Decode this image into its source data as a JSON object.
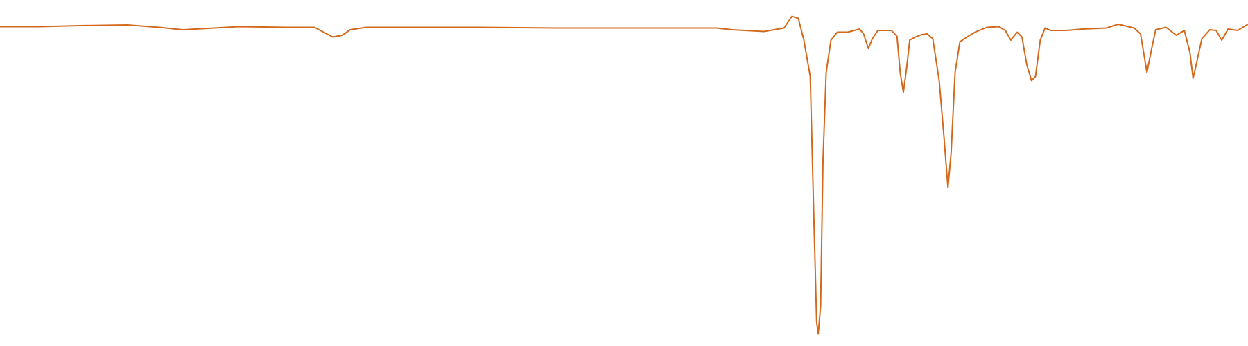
{
  "chart_data": {
    "type": "line",
    "x": [
      0,
      50,
      100,
      160,
      200,
      230,
      300,
      360,
      395,
      405,
      418,
      430,
      440,
      460,
      600,
      700,
      800,
      900,
      920,
      960,
      985,
      995,
      1003,
      1010,
      1018,
      1022,
      1026,
      1028,
      1031,
      1034,
      1038,
      1044,
      1052,
      1065,
      1080,
      1085,
      1091,
      1096,
      1103,
      1120,
      1127,
      1131,
      1135,
      1139,
      1143,
      1150,
      1158,
      1165,
      1172,
      1180,
      1186,
      1191,
      1195,
      1200,
      1206,
      1215,
      1225,
      1240,
      1255,
      1263,
      1270,
      1278,
      1284,
      1290,
      1296,
      1301,
      1307,
      1313,
      1320,
      1340,
      1360,
      1390,
      1405,
      1425,
      1433,
      1441,
      1447,
      1452,
      1465,
      1478,
      1488,
      1495,
      1499,
      1503,
      1510,
      1520,
      1528,
      1535,
      1543,
      1555,
      1568
    ],
    "series": [
      {
        "color": "#d4681a",
        "values": [
          92.3,
          92.3,
          92.6,
          92.8,
          92.1,
          91.4,
          92.3,
          92.1,
          92.1,
          90.9,
          89.3,
          89.8,
          91.4,
          92.1,
          92.1,
          91.9,
          91.9,
          91.9,
          91.4,
          90.9,
          91.9,
          95.3,
          94.7,
          88.4,
          77.9,
          41.9,
          7.0,
          3.5,
          11.6,
          53.5,
          79.1,
          88.4,
          90.7,
          90.7,
          91.6,
          90.2,
          86.0,
          88.8,
          91.2,
          91.2,
          89.5,
          79.1,
          73.3,
          80.2,
          88.4,
          89.3,
          90.0,
          90.2,
          88.8,
          76.7,
          60.5,
          45.8,
          55.8,
          79.1,
          87.9,
          89.3,
          90.7,
          92.1,
          92.3,
          91.2,
          88.4,
          90.7,
          89.3,
          81.4,
          76.7,
          77.9,
          88.4,
          91.9,
          91.2,
          91.2,
          91.6,
          91.9,
          93.0,
          91.9,
          90.2,
          79.1,
          86.0,
          91.4,
          92.1,
          89.8,
          91.2,
          84.9,
          77.4,
          81.4,
          88.8,
          91.4,
          91.2,
          88.4,
          91.6,
          91.2,
          93.0
        ]
      }
    ],
    "xlim": [
      0,
      1568
    ],
    "ylim": [
      0,
      100
    ]
  }
}
